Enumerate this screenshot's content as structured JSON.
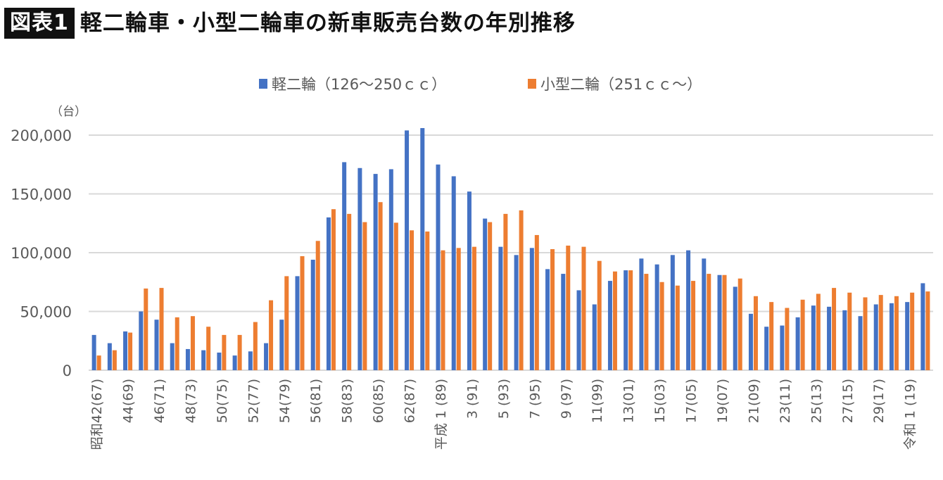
{
  "header": {
    "badge": "図表1",
    "title": "軽二輪車・小型二輪車の新車販売台数の年別推移"
  },
  "chart_data": {
    "type": "bar",
    "title": "軽二輪車・小型二輪車の新車販売台数の年別推移",
    "ylabel": "（台）",
    "xlabel": "",
    "ylim": [
      0,
      200000
    ],
    "yticks": [
      0,
      50000,
      100000,
      150000,
      200000
    ],
    "ytick_labels": [
      "0",
      "50,000",
      "100,000",
      "150,000",
      "200,000"
    ],
    "grid": true,
    "legend_position": "top-center",
    "x": [
      1967,
      1968,
      1969,
      1970,
      1971,
      1972,
      1973,
      1974,
      1975,
      1976,
      1977,
      1978,
      1979,
      1980,
      1981,
      1982,
      1983,
      1984,
      1985,
      1986,
      1987,
      1988,
      1989,
      1990,
      1991,
      1992,
      1993,
      1994,
      1995,
      1996,
      1997,
      1998,
      1999,
      2000,
      2001,
      2002,
      2003,
      2004,
      2005,
      2006,
      2007,
      2008,
      2009,
      2010,
      2011,
      2012,
      2013,
      2014,
      2015,
      2016,
      2017,
      2018,
      2019,
      2020
    ],
    "tick_labels": [
      {
        "index": 0,
        "era": "昭和",
        "label": "42(67)"
      },
      {
        "index": 2,
        "label": "44(69)"
      },
      {
        "index": 4,
        "label": "46(71)"
      },
      {
        "index": 6,
        "label": "48(73)"
      },
      {
        "index": 8,
        "label": "50(75)"
      },
      {
        "index": 10,
        "label": "52(77)"
      },
      {
        "index": 12,
        "label": "54(79)"
      },
      {
        "index": 14,
        "label": "56(81)"
      },
      {
        "index": 16,
        "label": "58(83)"
      },
      {
        "index": 18,
        "label": "60(85)"
      },
      {
        "index": 20,
        "label": "62(87)"
      },
      {
        "index": 22,
        "era": "平成",
        "label": " 1 (89)"
      },
      {
        "index": 24,
        "label": "3 (91)"
      },
      {
        "index": 26,
        "label": "5 (93)"
      },
      {
        "index": 28,
        "label": "7 (95)"
      },
      {
        "index": 30,
        "label": "9 (97)"
      },
      {
        "index": 32,
        "label": "11(99)"
      },
      {
        "index": 34,
        "label": "13(01)"
      },
      {
        "index": 36,
        "label": "15(03)"
      },
      {
        "index": 38,
        "label": "17(05)"
      },
      {
        "index": 40,
        "label": "19(07)"
      },
      {
        "index": 42,
        "label": "21(09)"
      },
      {
        "index": 44,
        "label": "23(11)"
      },
      {
        "index": 46,
        "label": "25(13)"
      },
      {
        "index": 48,
        "label": "27(15)"
      },
      {
        "index": 50,
        "label": "29(17)"
      },
      {
        "index": 52,
        "era": "令和",
        "label": " 1 (19)"
      }
    ],
    "series": [
      {
        "name": "軽二輪（126〜250ｃｃ）",
        "color": "#4472C4",
        "values": [
          30000,
          23000,
          33000,
          50000,
          43000,
          23000,
          18000,
          17000,
          15000,
          12500,
          16000,
          23000,
          43000,
          80000,
          94000,
          130000,
          177000,
          172000,
          167000,
          171000,
          204000,
          206000,
          175000,
          165000,
          152000,
          129000,
          105000,
          98000,
          104000,
          86000,
          82000,
          68000,
          56000,
          76000,
          85000,
          95000,
          90000,
          98000,
          102000,
          95000,
          81000,
          71000,
          48000,
          37000,
          38000,
          45000,
          55000,
          54000,
          51000,
          46000,
          56000,
          57000,
          58000,
          74000
        ]
      },
      {
        "name": "小型二輪（251ｃｃ〜）",
        "color": "#ED7D31",
        "values": [
          12500,
          17000,
          32000,
          69500,
          70000,
          45000,
          46000,
          37000,
          30000,
          30000,
          41000,
          59500,
          80000,
          97000,
          110000,
          137000,
          133000,
          126000,
          143000,
          125500,
          119000,
          118000,
          102000,
          104000,
          105000,
          126000,
          133000,
          136000,
          115000,
          103000,
          106000,
          105000,
          93000,
          84000,
          85000,
          82000,
          75000,
          72000,
          76000,
          82000,
          81000,
          78000,
          63000,
          58000,
          53000,
          60000,
          65000,
          70000,
          66000,
          62000,
          64000,
          63000,
          66000,
          67000
        ]
      }
    ]
  }
}
